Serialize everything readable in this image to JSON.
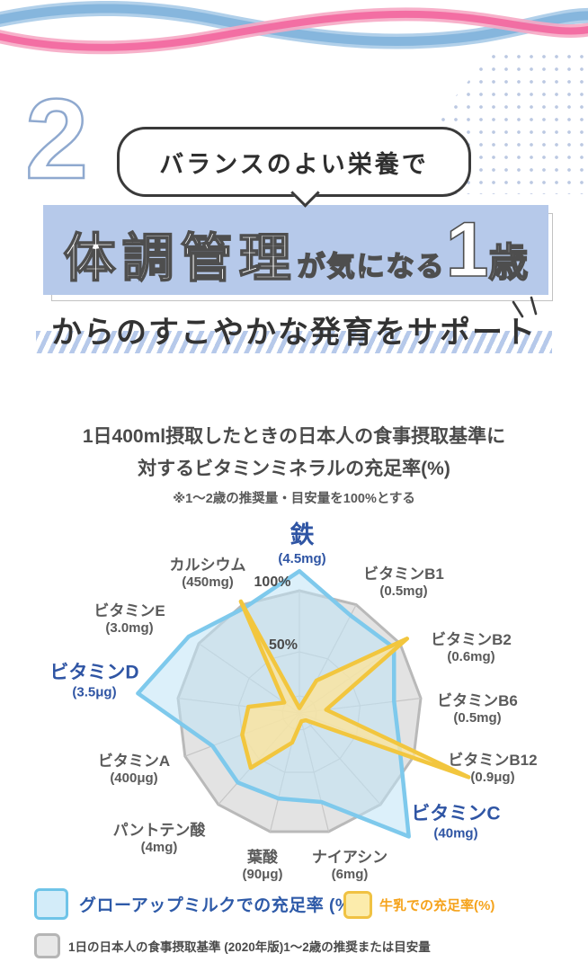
{
  "header": {
    "section_number": "2",
    "bubble_text": "バランスのよい栄養で",
    "headline": {
      "part1": "体調管理",
      "part2": "が気になる",
      "part3": "1",
      "part4": "歳"
    },
    "headline_line2": "からのすこやかな発育をサポート"
  },
  "chart_header": {
    "title_line1": "1日400ml摂取したときの日本人の食事摂取基準に",
    "title_line2": "対するビタミンミネラルの充足率(%)",
    "note": "※1〜2歳の推奨量・目安量を100%とする"
  },
  "chart_data": {
    "type": "radar",
    "unit": "%",
    "ring_labels": [
      "100%",
      "50%"
    ],
    "ring_values": [
      100,
      50
    ],
    "axes": [
      {
        "name": "鉄",
        "amount": "(4.5mg)",
        "highlight": true
      },
      {
        "name": "ビタミンB1",
        "amount": "(0.5mg)",
        "highlight": false
      },
      {
        "name": "ビタミンB2",
        "amount": "(0.6mg)",
        "highlight": false
      },
      {
        "name": "ビタミンB6",
        "amount": "(0.5mg)",
        "highlight": false
      },
      {
        "name": "ビタミンB12",
        "amount": "(0.9μg)",
        "highlight": false
      },
      {
        "name": "ビタミンC",
        "amount": "(40mg)",
        "highlight": true
      },
      {
        "name": "ナイアシン",
        "amount": "(6mg)",
        "highlight": false
      },
      {
        "name": "葉酸",
        "amount": "(90μg)",
        "highlight": false
      },
      {
        "name": "パントテン酸",
        "amount": "(4mg)",
        "highlight": false
      },
      {
        "name": "ビタミンA",
        "amount": "(400μg)",
        "highlight": false
      },
      {
        "name": "ビタミンD",
        "amount": "(3.5μg)",
        "highlight": true
      },
      {
        "name": "ビタミンE",
        "amount": "(3.0mg)",
        "highlight": false
      },
      {
        "name": "カルシウム",
        "amount": "(450mg)",
        "highlight": false
      }
    ],
    "series": [
      {
        "name": "1日の日本人の食事摂取基準(2020年版)1〜2歳の推奨または目安量",
        "stroke": "#b9b9b9",
        "fill": "#e3e3e3",
        "fill_opacity": 1,
        "values": [
          100,
          100,
          100,
          100,
          100,
          100,
          100,
          100,
          100,
          100,
          100,
          100,
          100
        ]
      },
      {
        "name": "グローアップミルクでの充足率 (%)",
        "stroke": "#7ec9ec",
        "fill": "#bfe3f5",
        "fill_opacity": 0.55,
        "values": [
          116,
          90,
          94,
          78,
          88,
          135,
          75,
          72,
          76,
          76,
          133,
          110,
          97
        ]
      },
      {
        "name": "牛乳での充足率(%)",
        "stroke": "#f2c63e",
        "fill": "#fbe49c",
        "fill_opacity": 0.8,
        "values": [
          4,
          30,
          107,
          22,
          148,
          8,
          7,
          25,
          60,
          50,
          42,
          15,
          103
        ]
      }
    ]
  },
  "legend": {
    "growup": {
      "label": "グローアップミルクでの充足率 (%)",
      "color": "#2e5aa8",
      "swatch_stroke": "#6fc4e8",
      "swatch_fill": "#d3ecf9"
    },
    "milk": {
      "label": "牛乳での充足率(%)",
      "color": "#f5a31c",
      "swatch_stroke": "#f0c243",
      "swatch_fill": "#fcecac"
    },
    "standard": {
      "label": "1日の日本人の食事摂取基準 (2020年版)1〜2歳の推奨または目安量",
      "color": "#4a4a4a",
      "swatch_stroke": "#b5b5b5",
      "swatch_fill": "#e8e8e8"
    }
  }
}
